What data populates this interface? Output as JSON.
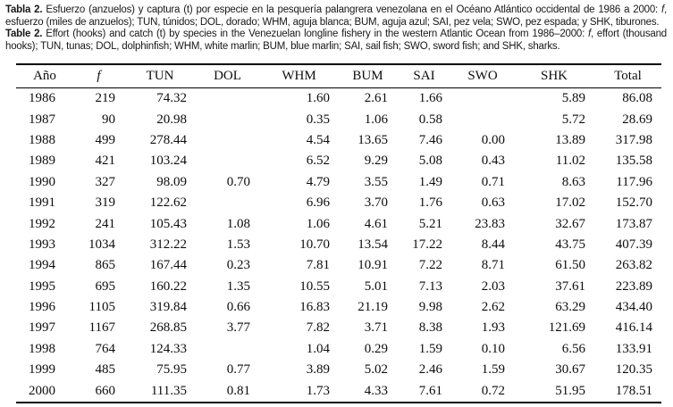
{
  "colors": {
    "background": "#ffffff",
    "text": "#111111"
  },
  "captions": {
    "es": {
      "label": "Tabla 2.",
      "before_f": "Esfuerzo (anzuelos) y captura (t) por especie en la pesquería palangrera venezolana en el Océano Atlántico occidental de 1986 a 2000: ",
      "f_symbol": "f",
      "after_f": ", esfuerzo (miles de anzuelos); TUN, túnidos; DOL, dorado; WHM, aguja blanca; BUM, aguja azul; SAI, pez vela; SWO, pez espada; y SHK, tiburones."
    },
    "en": {
      "label": "Table 2.",
      "before_f": "Effort (hooks) and catch (t) by species in the Venezuelan longline fishery in the western Atlantic Ocean from 1986–2000: ",
      "f_symbol": "f",
      "after_f": ", effort (thousand hooks); TUN, tunas; DOL, dolphinfish; WHM, white marlin; BUM, blue marlin; SAI, sail fish; SWO, sword fish; and SHK, sharks."
    }
  },
  "table": {
    "columns": [
      "Año",
      "f",
      "TUN",
      "DOL",
      "WHM",
      "BUM",
      "SAI",
      "SWO",
      "SHK",
      "Total"
    ],
    "rows": [
      [
        "1986",
        "219",
        "74.32",
        "",
        "1.60",
        "2.61",
        "1.66",
        "",
        "5.89",
        "86.08"
      ],
      [
        "1987",
        "90",
        "20.98",
        "",
        "0.35",
        "1.06",
        "0.58",
        "",
        "5.72",
        "28.69"
      ],
      [
        "1988",
        "499",
        "278.44",
        "",
        "4.54",
        "13.65",
        "7.46",
        "0.00",
        "13.89",
        "317.98"
      ],
      [
        "1989",
        "421",
        "103.24",
        "",
        "6.52",
        "9.29",
        "5.08",
        "0.43",
        "11.02",
        "135.58"
      ],
      [
        "1990",
        "327",
        "98.09",
        "0.70",
        "4.79",
        "3.55",
        "1.49",
        "0.71",
        "8.63",
        "117.96"
      ],
      [
        "1991",
        "319",
        "122.62",
        "",
        "6.96",
        "3.70",
        "1.76",
        "0.63",
        "17.02",
        "152.70"
      ],
      [
        "1992",
        "241",
        "105.43",
        "1.08",
        "1.06",
        "4.61",
        "5.21",
        "23.83",
        "32.67",
        "173.87"
      ],
      [
        "1993",
        "1034",
        "312.22",
        "1.53",
        "10.70",
        "13.54",
        "17.22",
        "8.44",
        "43.75",
        "407.39"
      ],
      [
        "1994",
        "865",
        "167.44",
        "0.23",
        "7.81",
        "10.91",
        "7.22",
        "8.71",
        "61.50",
        "263.82"
      ],
      [
        "1995",
        "695",
        "160.22",
        "1.35",
        "10.55",
        "5.01",
        "7.13",
        "2.03",
        "37.61",
        "223.89"
      ],
      [
        "1996",
        "1105",
        "319.84",
        "0.66",
        "16.83",
        "21.19",
        "9.98",
        "2.62",
        "63.29",
        "434.40"
      ],
      [
        "1997",
        "1167",
        "268.85",
        "3.77",
        "7.82",
        "3.71",
        "8.38",
        "1.93",
        "121.69",
        "416.14"
      ],
      [
        "1998",
        "764",
        "124.33",
        "",
        "1.04",
        "0.29",
        "1.59",
        "0.10",
        "6.56",
        "133.91"
      ],
      [
        "1999",
        "485",
        "75.95",
        "0.77",
        "3.89",
        "5.02",
        "2.46",
        "1.59",
        "30.67",
        "120.35"
      ],
      [
        "2000",
        "660",
        "111.35",
        "0.81",
        "1.73",
        "4.33",
        "7.61",
        "0.72",
        "51.95",
        "178.51"
      ]
    ]
  }
}
